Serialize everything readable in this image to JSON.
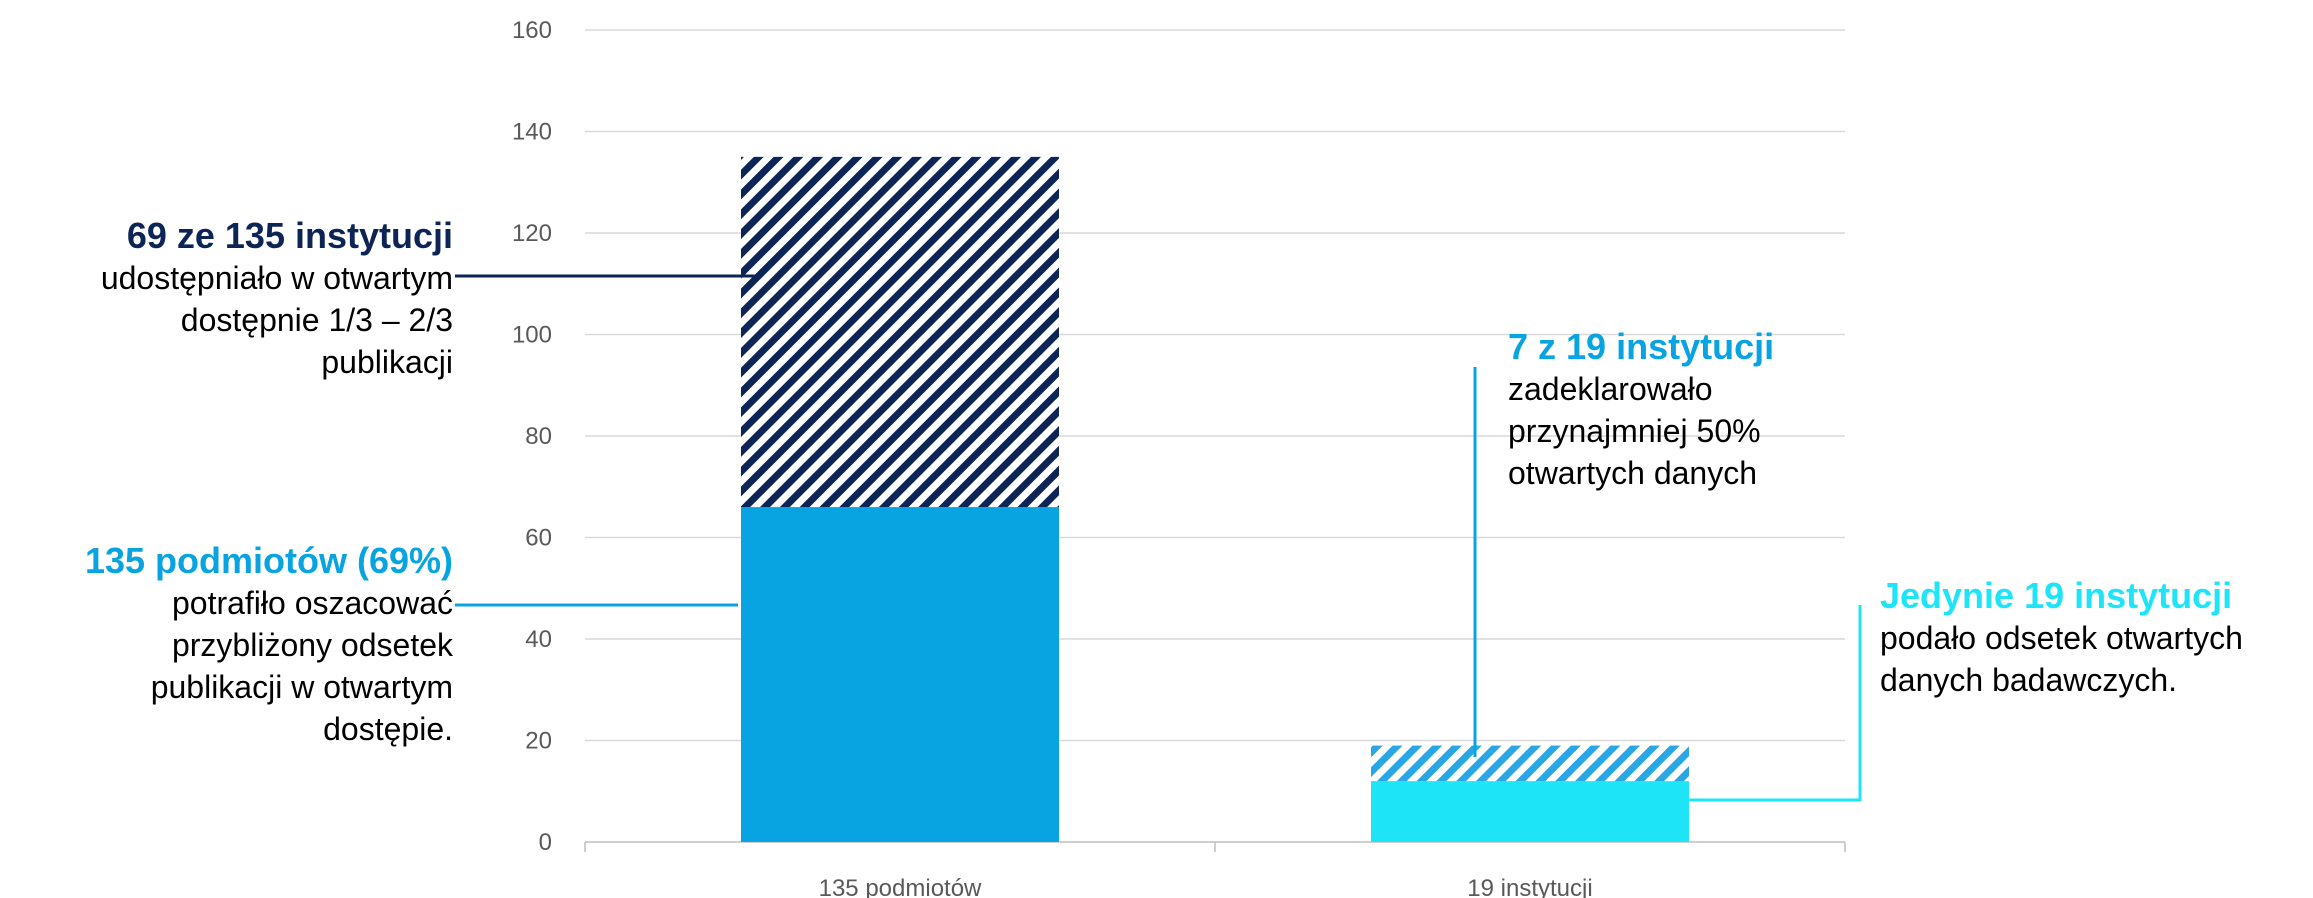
{
  "colors": {
    "dark_navy": "#0d2556",
    "blue": "#08a4e2",
    "cyan": "#1ee4f8",
    "light_blue": "#29a6e6",
    "axis_text": "#595959",
    "grid": "#d9d9d9"
  },
  "chart_data": {
    "type": "bar",
    "stacked": true,
    "categories": [
      "135 podmiotów",
      "19 instytucji"
    ],
    "series": [
      {
        "values": [
          66,
          12
        ]
      },
      {
        "values": [
          69,
          7
        ]
      }
    ],
    "ylim": [
      0,
      160
    ],
    "yticks": [
      0,
      20,
      40,
      60,
      80,
      100,
      120,
      140,
      160
    ],
    "grid": true,
    "legend": "none",
    "title": "",
    "xlabel": "",
    "ylabel": ""
  },
  "annotations": {
    "a69": {
      "head": "69 ze 135 instytucji",
      "lines": [
        "udostępniało w otwartym",
        "dostępnie 1/3 – 2/3",
        "publikacji"
      ]
    },
    "a135": {
      "head": "135 podmiotów (69%)",
      "lines": [
        "potrafiło oszacować",
        "przybliżony odsetek",
        "publikacji w otwartym",
        "dostępie."
      ]
    },
    "a7": {
      "head": "7 z 19 instytucji",
      "lines": [
        "zadeklarowało",
        "przynajmniej 50%",
        "otwartych danych"
      ]
    },
    "ajed": {
      "head": "Jedynie 19 instytucji",
      "lines": [
        "podało odsetek otwartych",
        "danych badawczych."
      ]
    }
  }
}
